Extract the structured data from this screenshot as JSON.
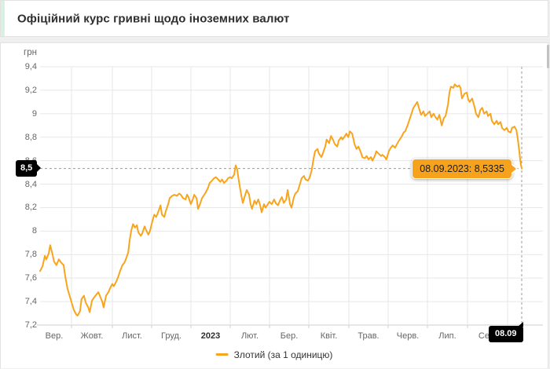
{
  "header": {
    "title": "Офіційний курс гривні щодо іноземних валют"
  },
  "colors": {
    "line": "#F8A41D",
    "tooltip_bg": "#F7A21C",
    "tag_bg": "#000000",
    "accent": "#D8F1E3",
    "grid": "#E7E7E7",
    "axis": "#CFCFCF",
    "crosshair": "#999999"
  },
  "chart_data": {
    "type": "line",
    "title": "Офіційний курс гривні щодо іноземних валют",
    "ylabel": "грн",
    "unit": "грн",
    "ylim": [
      7.2,
      9.4
    ],
    "y_ticks": [
      "9,4",
      "9,2",
      "9",
      "8,8",
      "8,6",
      "8,4",
      "8,2",
      "8",
      "7,8",
      "7,6",
      "7,4",
      "7,2"
    ],
    "x_tick_labels": [
      "Вер.",
      "Жовт.",
      "Лист.",
      "Груд.",
      "2023",
      "Лют.",
      "Бер.",
      "Квіт.",
      "Трав.",
      "Черв.",
      "Лип.",
      "Сер."
    ],
    "x_bold_label": "2023",
    "x_range": [
      "Вер. 2022",
      "08.09.2023"
    ],
    "grid": true,
    "legend_position": "bottom",
    "crosshair": {
      "value": 8.5335,
      "value_tag": "8,5",
      "date_tag": "08.09",
      "tooltip": "08.09.2023: 8,5335"
    },
    "series": [
      {
        "name": "Злотий (за 1 одиницю)",
        "color": "#F8A41D",
        "last_point": {
          "date": "08.09.2023",
          "value": 8.5335
        },
        "points": [
          [
            0.0,
            7.66
          ],
          [
            0.005,
            7.7
          ],
          [
            0.01,
            7.79
          ],
          [
            0.013,
            7.76
          ],
          [
            0.018,
            7.81
          ],
          [
            0.021,
            7.88
          ],
          [
            0.026,
            7.8
          ],
          [
            0.029,
            7.74
          ],
          [
            0.034,
            7.71
          ],
          [
            0.039,
            7.76
          ],
          [
            0.044,
            7.73
          ],
          [
            0.049,
            7.71
          ],
          [
            0.052,
            7.62
          ],
          [
            0.057,
            7.51
          ],
          [
            0.062,
            7.44
          ],
          [
            0.065,
            7.4
          ],
          [
            0.07,
            7.33
          ],
          [
            0.075,
            7.29
          ],
          [
            0.078,
            7.28
          ],
          [
            0.083,
            7.32
          ],
          [
            0.086,
            7.42
          ],
          [
            0.091,
            7.45
          ],
          [
            0.095,
            7.39
          ],
          [
            0.1,
            7.35
          ],
          [
            0.103,
            7.31
          ],
          [
            0.108,
            7.41
          ],
          [
            0.113,
            7.44
          ],
          [
            0.117,
            7.46
          ],
          [
            0.121,
            7.48
          ],
          [
            0.126,
            7.43
          ],
          [
            0.129,
            7.4
          ],
          [
            0.132,
            7.35
          ],
          [
            0.137,
            7.45
          ],
          [
            0.142,
            7.48
          ],
          [
            0.145,
            7.51
          ],
          [
            0.15,
            7.55
          ],
          [
            0.153,
            7.53
          ],
          [
            0.158,
            7.57
          ],
          [
            0.163,
            7.62
          ],
          [
            0.166,
            7.66
          ],
          [
            0.171,
            7.71
          ],
          [
            0.175,
            7.73
          ],
          [
            0.179,
            7.77
          ],
          [
            0.183,
            7.82
          ],
          [
            0.186,
            7.92
          ],
          [
            0.189,
            8.0
          ],
          [
            0.193,
            8.06
          ],
          [
            0.197,
            8.03
          ],
          [
            0.201,
            8.05
          ],
          [
            0.204,
            7.99
          ],
          [
            0.209,
            7.96
          ],
          [
            0.212,
            7.98
          ],
          [
            0.217,
            8.04
          ],
          [
            0.22,
            8.01
          ],
          [
            0.225,
            7.97
          ],
          [
            0.228,
            8.0
          ],
          [
            0.233,
            8.08
          ],
          [
            0.237,
            8.14
          ],
          [
            0.241,
            8.12
          ],
          [
            0.245,
            8.16
          ],
          [
            0.25,
            8.22
          ],
          [
            0.253,
            8.14
          ],
          [
            0.258,
            8.12
          ],
          [
            0.261,
            8.17
          ],
          [
            0.266,
            8.23
          ],
          [
            0.269,
            8.28
          ],
          [
            0.274,
            8.3
          ],
          [
            0.279,
            8.31
          ],
          [
            0.284,
            8.3
          ],
          [
            0.289,
            8.32
          ],
          [
            0.292,
            8.31
          ],
          [
            0.297,
            8.28
          ],
          [
            0.302,
            8.27
          ],
          [
            0.305,
            8.31
          ],
          [
            0.308,
            8.29
          ],
          [
            0.313,
            8.23
          ],
          [
            0.317,
            8.27
          ],
          [
            0.32,
            8.31
          ],
          [
            0.325,
            8.28
          ],
          [
            0.328,
            8.19
          ],
          [
            0.333,
            8.24
          ],
          [
            0.336,
            8.28
          ],
          [
            0.341,
            8.31
          ],
          [
            0.344,
            8.33
          ],
          [
            0.349,
            8.37
          ],
          [
            0.352,
            8.41
          ],
          [
            0.357,
            8.43
          ],
          [
            0.361,
            8.45
          ],
          [
            0.365,
            8.46
          ],
          [
            0.37,
            8.44
          ],
          [
            0.374,
            8.42
          ],
          [
            0.378,
            8.44
          ],
          [
            0.382,
            8.41
          ],
          [
            0.387,
            8.43
          ],
          [
            0.39,
            8.45
          ],
          [
            0.395,
            8.46
          ],
          [
            0.398,
            8.45
          ],
          [
            0.403,
            8.48
          ],
          [
            0.406,
            8.56
          ],
          [
            0.409,
            8.53
          ],
          [
            0.413,
            8.42
          ],
          [
            0.418,
            8.3
          ],
          [
            0.421,
            8.24
          ],
          [
            0.426,
            8.31
          ],
          [
            0.429,
            8.35
          ],
          [
            0.434,
            8.31
          ],
          [
            0.437,
            8.23
          ],
          [
            0.44,
            8.19
          ],
          [
            0.445,
            8.26
          ],
          [
            0.449,
            8.23
          ],
          [
            0.453,
            8.27
          ],
          [
            0.457,
            8.22
          ],
          [
            0.46,
            8.16
          ],
          [
            0.465,
            8.23
          ],
          [
            0.468,
            8.2
          ],
          [
            0.473,
            8.23
          ],
          [
            0.476,
            8.25
          ],
          [
            0.481,
            8.23
          ],
          [
            0.486,
            8.27
          ],
          [
            0.489,
            8.24
          ],
          [
            0.494,
            8.22
          ],
          [
            0.498,
            8.26
          ],
          [
            0.502,
            8.29
          ],
          [
            0.506,
            8.24
          ],
          [
            0.511,
            8.27
          ],
          [
            0.514,
            8.35
          ],
          [
            0.519,
            8.23
          ],
          [
            0.522,
            8.2
          ],
          [
            0.527,
            8.29
          ],
          [
            0.53,
            8.32
          ],
          [
            0.535,
            8.34
          ],
          [
            0.538,
            8.38
          ],
          [
            0.543,
            8.45
          ],
          [
            0.548,
            8.47
          ],
          [
            0.551,
            8.44
          ],
          [
            0.556,
            8.43
          ],
          [
            0.56,
            8.46
          ],
          [
            0.564,
            8.52
          ],
          [
            0.568,
            8.62
          ],
          [
            0.571,
            8.68
          ],
          [
            0.576,
            8.7
          ],
          [
            0.579,
            8.66
          ],
          [
            0.584,
            8.63
          ],
          [
            0.587,
            8.66
          ],
          [
            0.592,
            8.72
          ],
          [
            0.595,
            8.78
          ],
          [
            0.6,
            8.75
          ],
          [
            0.604,
            8.81
          ],
          [
            0.608,
            8.78
          ],
          [
            0.612,
            8.74
          ],
          [
            0.617,
            8.72
          ],
          [
            0.62,
            8.77
          ],
          [
            0.625,
            8.8
          ],
          [
            0.628,
            8.78
          ],
          [
            0.633,
            8.81
          ],
          [
            0.636,
            8.83
          ],
          [
            0.64,
            8.8
          ],
          [
            0.643,
            8.85
          ],
          [
            0.648,
            8.83
          ],
          [
            0.653,
            8.74
          ],
          [
            0.657,
            8.7
          ],
          [
            0.661,
            8.72
          ],
          [
            0.666,
            8.67
          ],
          [
            0.669,
            8.63
          ],
          [
            0.674,
            8.62
          ],
          [
            0.678,
            8.64
          ],
          [
            0.682,
            8.61
          ],
          [
            0.687,
            8.63
          ],
          [
            0.69,
            8.6
          ],
          [
            0.695,
            8.64
          ],
          [
            0.698,
            8.68
          ],
          [
            0.703,
            8.66
          ],
          [
            0.708,
            8.64
          ],
          [
            0.711,
            8.65
          ],
          [
            0.716,
            8.63
          ],
          [
            0.719,
            8.61
          ],
          [
            0.724,
            8.68
          ],
          [
            0.728,
            8.71
          ],
          [
            0.732,
            8.73
          ],
          [
            0.737,
            8.71
          ],
          [
            0.741,
            8.74
          ],
          [
            0.745,
            8.77
          ],
          [
            0.75,
            8.8
          ],
          [
            0.755,
            8.84
          ],
          [
            0.758,
            8.85
          ],
          [
            0.763,
            8.9
          ],
          [
            0.767,
            8.95
          ],
          [
            0.772,
            9.01
          ],
          [
            0.775,
            9.05
          ],
          [
            0.78,
            9.08
          ],
          [
            0.783,
            9.1
          ],
          [
            0.788,
            9.03
          ],
          [
            0.791,
            8.99
          ],
          [
            0.796,
            9.02
          ],
          [
            0.799,
            8.98
          ],
          [
            0.804,
            9.0
          ],
          [
            0.809,
            9.02
          ],
          [
            0.812,
            8.97
          ],
          [
            0.817,
            9.0
          ],
          [
            0.821,
            8.97
          ],
          [
            0.825,
            8.95
          ],
          [
            0.829,
            8.99
          ],
          [
            0.834,
            8.9
          ],
          [
            0.838,
            8.96
          ],
          [
            0.842,
            8.98
          ],
          [
            0.847,
            9.08
          ],
          [
            0.85,
            9.18
          ],
          [
            0.853,
            9.23
          ],
          [
            0.858,
            9.22
          ],
          [
            0.861,
            9.25
          ],
          [
            0.866,
            9.23
          ],
          [
            0.87,
            9.24
          ],
          [
            0.873,
            9.22
          ],
          [
            0.876,
            9.13
          ],
          [
            0.881,
            9.17
          ],
          [
            0.886,
            9.18
          ],
          [
            0.889,
            9.12
          ],
          [
            0.892,
            9.1
          ],
          [
            0.897,
            9.13
          ],
          [
            0.902,
            9.06
          ],
          [
            0.905,
            9.0
          ],
          [
            0.91,
            8.97
          ],
          [
            0.914,
            9.03
          ],
          [
            0.918,
            9.05
          ],
          [
            0.922,
            9.0
          ],
          [
            0.927,
            9.02
          ],
          [
            0.93,
            8.98
          ],
          [
            0.935,
            9.0
          ],
          [
            0.938,
            8.94
          ],
          [
            0.943,
            8.91
          ],
          [
            0.948,
            8.94
          ],
          [
            0.951,
            8.91
          ],
          [
            0.956,
            8.93
          ],
          [
            0.959,
            8.88
          ],
          [
            0.964,
            8.86
          ],
          [
            0.969,
            8.88
          ],
          [
            0.972,
            8.85
          ],
          [
            0.977,
            8.84
          ],
          [
            0.98,
            8.88
          ],
          [
            0.985,
            8.89
          ],
          [
            0.989,
            8.86
          ],
          [
            0.992,
            8.78
          ],
          [
            0.995,
            8.68
          ],
          [
            0.998,
            8.57
          ],
          [
            1.0,
            8.5335
          ]
        ]
      }
    ]
  }
}
